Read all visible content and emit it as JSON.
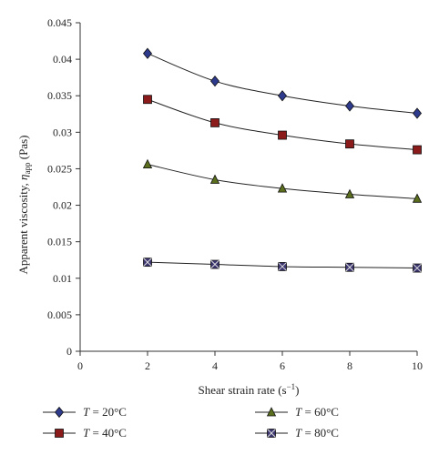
{
  "chart_data": {
    "type": "line",
    "xlabel": "Shear strain rate (s",
    "xlabel_sup": "−1",
    "xlabel_end": ")",
    "ylabel": "Apparent viscosity, ",
    "ylabel_symbol": "η",
    "ylabel_sub": "app",
    "ylabel_end": " (Pas)",
    "xlim": [
      0,
      10
    ],
    "ylim": [
      0,
      0.045
    ],
    "x_ticks": [
      "0",
      "2",
      "4",
      "6",
      "8",
      "10"
    ],
    "y_ticks": [
      "0",
      "0.005",
      "0.01",
      "0.015",
      "0.02",
      "0.025",
      "0.03",
      "0.035",
      "0.04",
      "0.045"
    ],
    "x": [
      2,
      4,
      6,
      8,
      10
    ],
    "grid": false,
    "legend_position": "bottom",
    "series": [
      {
        "name_var": "T",
        "name_rest": " = 20°C",
        "marker": "diamond",
        "color": "#2e3a8c",
        "values": [
          0.0408,
          0.037,
          0.035,
          0.0336,
          0.0326
        ]
      },
      {
        "name_var": "T",
        "name_rest": " = 40°C",
        "marker": "square",
        "color": "#8b1a1a",
        "values": [
          0.0345,
          0.0313,
          0.0296,
          0.0284,
          0.0276
        ]
      },
      {
        "name_var": "T",
        "name_rest": " = 60°C",
        "marker": "triangle",
        "color": "#5a6e1e",
        "values": [
          0.0256,
          0.0235,
          0.0223,
          0.0215,
          0.0209
        ]
      },
      {
        "name_var": "T",
        "name_rest": " = 80°C",
        "marker": "xsquare",
        "color": "#3b3570",
        "values": [
          0.0122,
          0.0119,
          0.0116,
          0.0115,
          0.0114
        ]
      }
    ]
  }
}
